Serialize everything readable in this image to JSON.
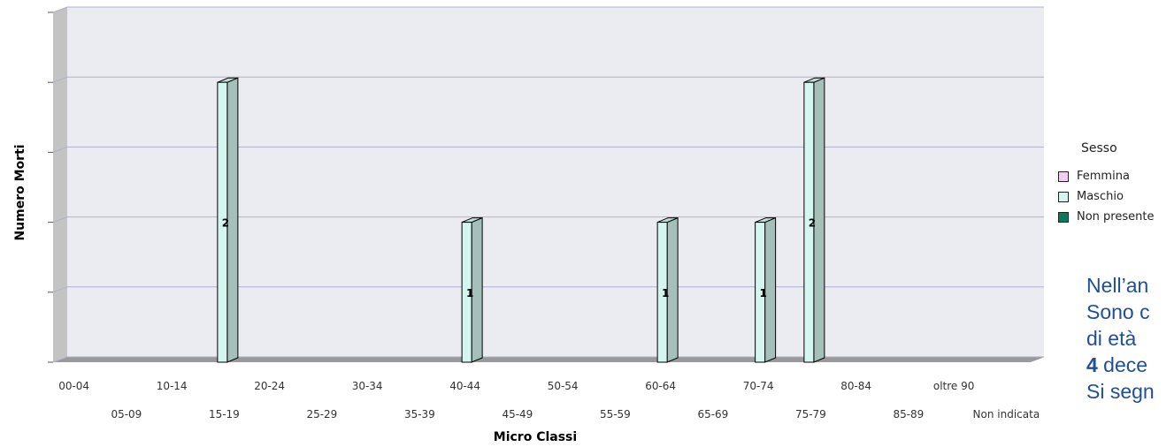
{
  "chart_data": {
    "type": "bar",
    "xlabel": "Micro Classi",
    "ylabel": "Numero Morti",
    "ylim": [
      0,
      2.5
    ],
    "grid": true,
    "legend_title": "Sesso",
    "legend_position": "right",
    "categories": [
      "00-04",
      "05-09",
      "10-14",
      "15-19",
      "20-24",
      "25-29",
      "30-34",
      "35-39",
      "40-44",
      "45-49",
      "50-54",
      "55-59",
      "60-64",
      "65-69",
      "70-74",
      "75-79",
      "80-84",
      "85-89",
      "oltre 90",
      "Non indicata"
    ],
    "series": [
      {
        "name": "Femmina",
        "color": "#f2ccf2",
        "values": [
          0,
          0,
          0,
          0,
          0,
          0,
          0,
          0,
          0,
          0,
          0,
          0,
          0,
          0,
          0,
          0,
          0,
          0,
          0,
          0
        ]
      },
      {
        "name": "Maschio",
        "color": "#d4f5f0",
        "values": [
          0,
          0,
          0,
          2,
          0,
          0,
          0,
          0,
          1,
          0,
          0,
          0,
          1,
          0,
          1,
          2,
          0,
          0,
          0,
          0
        ]
      },
      {
        "name": "Non presente",
        "color": "#0a7a5a",
        "values": [
          0,
          0,
          0,
          0,
          0,
          0,
          0,
          0,
          0,
          0,
          0,
          0,
          0,
          0,
          0,
          0,
          0,
          0,
          0,
          0
        ]
      }
    ]
  },
  "side_text": {
    "line1": "Nell’an",
    "line2": "Sono c",
    "line3": "di età",
    "line4_bold": "4",
    "line4_rest": " dece",
    "line5": "Si segn"
  }
}
